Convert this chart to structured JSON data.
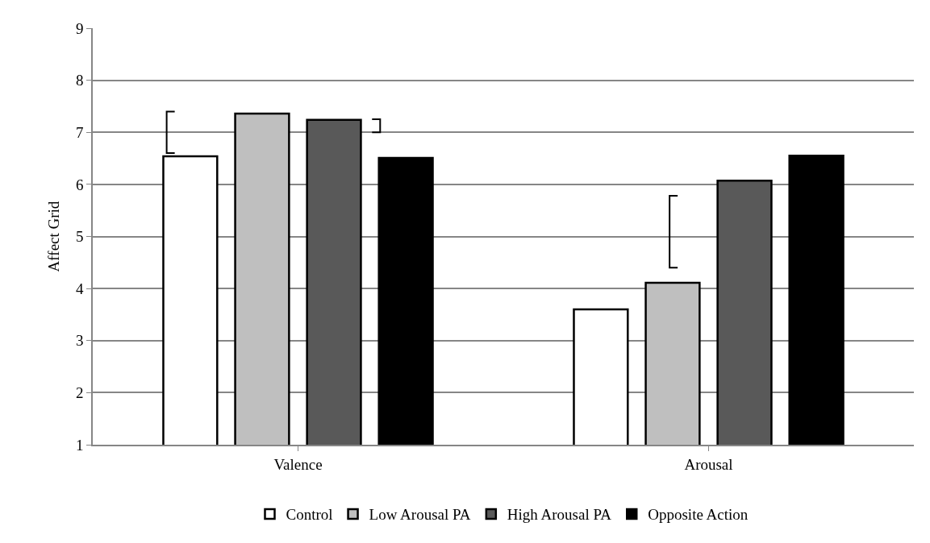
{
  "chart_data": {
    "type": "bar",
    "ylabel": "Affect Grid",
    "categories": [
      "Valence",
      "Arousal"
    ],
    "series": [
      {
        "name": "Control",
        "color": "#ffffff",
        "values": [
          6.54,
          3.6
        ]
      },
      {
        "name": "Low Arousal PA",
        "color": "#bfbfbf",
        "values": [
          7.36,
          4.11
        ]
      },
      {
        "name": "High Arousal PA",
        "color": "#595959",
        "values": [
          7.24,
          6.07
        ]
      },
      {
        "name": "Opposite Action",
        "color": "#000000",
        "values": [
          6.51,
          6.55
        ]
      }
    ],
    "ylim": [
      1,
      9
    ],
    "yticks": [
      1,
      2,
      3,
      4,
      5,
      6,
      7,
      8,
      9
    ],
    "grid": "y",
    "legend": "bottom"
  }
}
